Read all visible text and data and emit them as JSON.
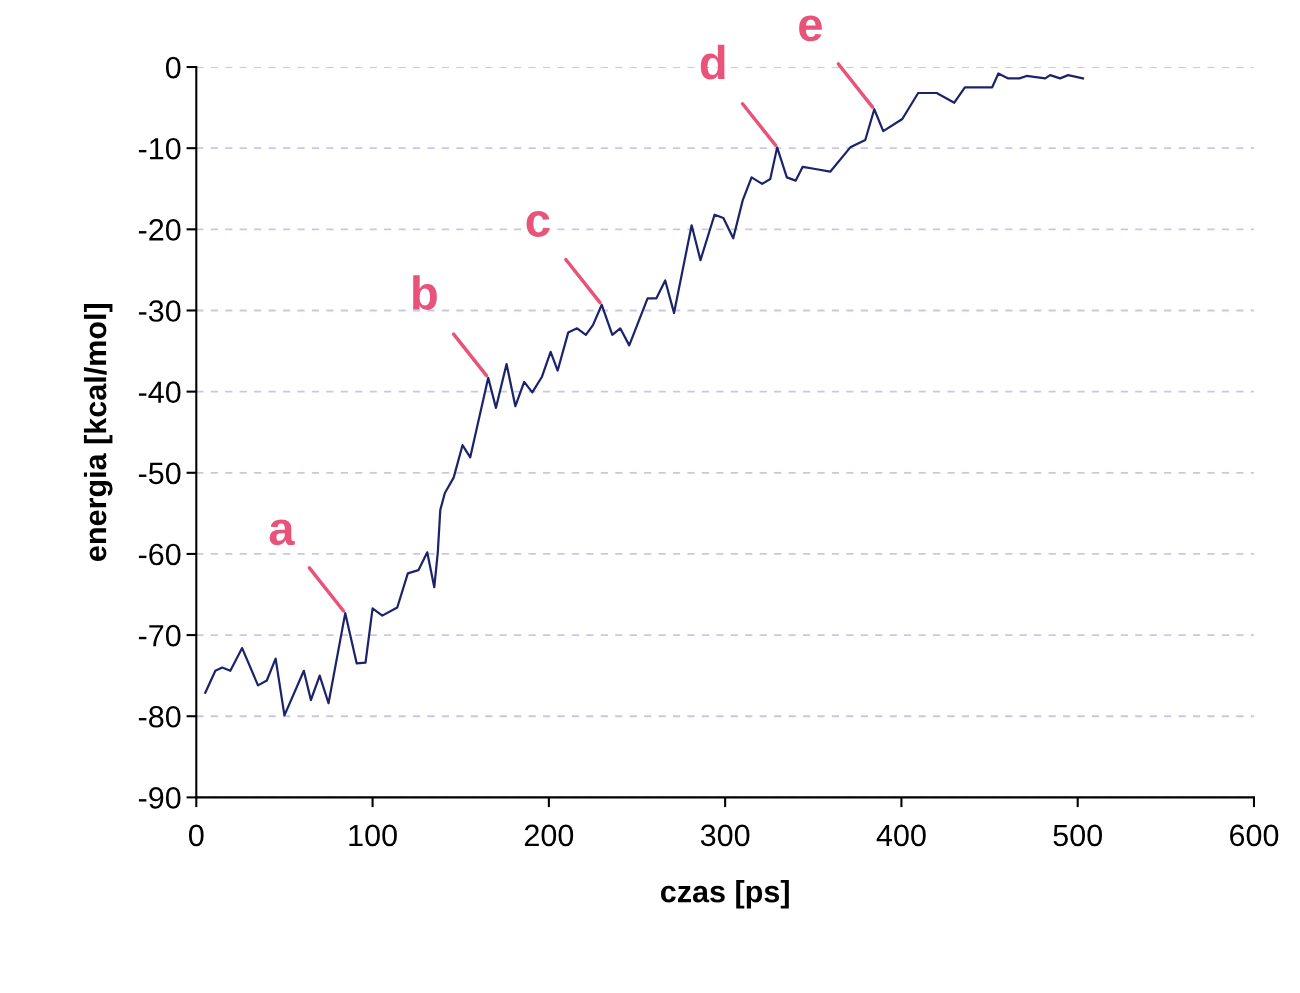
{
  "chart_data": {
    "type": "line",
    "xlabel": "czas [ps]",
    "ylabel": "energia [kcal/mol]",
    "series": [
      {
        "color": "#1c2469",
        "x": [
          5.1,
          10.8,
          14.7,
          19.3,
          26,
          35,
          40,
          45,
          50,
          61,
          65,
          70,
          75,
          84.5,
          91,
          96,
          100,
          105.5,
          114,
          120,
          126,
          131,
          135,
          137,
          138.4,
          141,
          146,
          151,
          155.4,
          165.6,
          170,
          176,
          181,
          186,
          190.6,
          196,
          201,
          205,
          211,
          216,
          221,
          225,
          230,
          236,
          240.5,
          245.6,
          256,
          261,
          266,
          271,
          281,
          286,
          294,
          299,
          304.6,
          310,
          315,
          321,
          325.6,
          329.5,
          335,
          340,
          344,
          352,
          359.6,
          371,
          379.5,
          384.6,
          389.7,
          400.5,
          409.5,
          420,
          430,
          436,
          451.5,
          455,
          460.6,
          467,
          471,
          481.6,
          484.4,
          490,
          494.6,
          503
        ],
        "values": [
          -77.1,
          -74.4,
          -74.0,
          -74.4,
          -71.6,
          -76.2,
          -75.6,
          -72.9,
          -79.9,
          -74.4,
          -78,
          -75,
          -78.4,
          -67.3,
          -73.5,
          -73.4,
          -66.7,
          -67.6,
          -66.6,
          -62.4,
          -62,
          -59.8,
          -64.1,
          -59.8,
          -54.6,
          -52.5,
          -50.6,
          -46.6,
          -48.1,
          -38.3,
          -42,
          -36.6,
          -41.8,
          -38.8,
          -40.1,
          -38.2,
          -35.1,
          -37.4,
          -32.7,
          -32.2,
          -33,
          -31.8,
          -29.3,
          -33,
          -32.2,
          -34.3,
          -28.5,
          -28.5,
          -26.3,
          -30.3,
          -19.5,
          -23.8,
          -18.2,
          -18.6,
          -21.1,
          -16.4,
          -13.6,
          -14.4,
          -13.8,
          -9.9,
          -13.6,
          -14,
          -12.3,
          -12.6,
          -12.9,
          -9.9,
          -9,
          -5.2,
          -7.9,
          -6.4,
          -3.2,
          -3.2,
          -4.4,
          -2.5,
          -2.5,
          -0.8,
          -1.4,
          -1.4,
          -1.1,
          -1.4,
          -1.0,
          -1.4,
          -1.0,
          -1.4
        ]
      }
    ],
    "annotations": [
      {
        "text": "a",
        "x": 84.5,
        "y": -67.3
      },
      {
        "text": "b",
        "x": 165.6,
        "y": -38.3
      },
      {
        "text": "c",
        "x": 230,
        "y": -29.3
      },
      {
        "text": "d",
        "x": 329.5,
        "y": -9.9
      },
      {
        "text": "e",
        "x": 384.6,
        "y": -5.2
      }
    ],
    "xlim": [
      0,
      600
    ],
    "xticks": [
      0,
      100,
      200,
      300,
      400,
      500,
      600
    ],
    "ylim": [
      -90,
      0
    ],
    "yticks": [
      -90,
      -80,
      -70,
      -60,
      -50,
      -40,
      -30,
      -20,
      -10,
      0
    ],
    "grid": "y",
    "marker": "none",
    "line_style": "solid"
  }
}
